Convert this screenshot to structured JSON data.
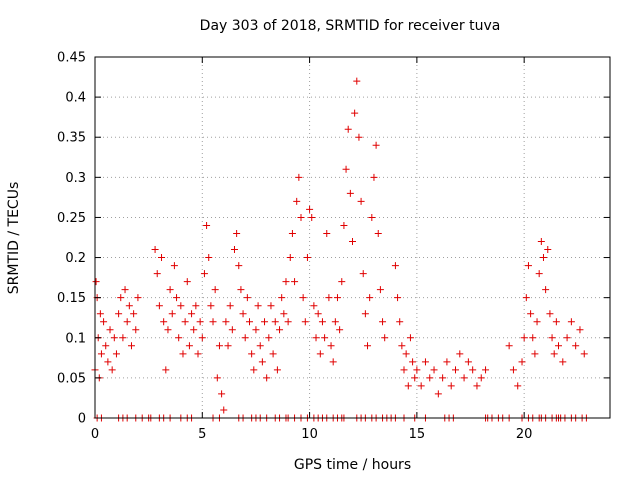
{
  "chart_data": {
    "type": "scatter",
    "title": "Day 303 of 2018, SRMTID for receiver tuva",
    "xlabel": "GPS time / hours",
    "ylabel": "SRMTID / TECUs",
    "xlim": [
      0,
      24
    ],
    "ylim": [
      0,
      0.45
    ],
    "xticks": [
      0,
      5,
      10,
      15,
      20
    ],
    "yticks": [
      0,
      0.05,
      0.1,
      0.15,
      0.2,
      0.25,
      0.3,
      0.35,
      0.4,
      0.45
    ],
    "ytick_labels": [
      "0",
      "0.05",
      "0.1",
      "0.15",
      "0.2",
      "0.25",
      "0.3",
      "0.35",
      "0.4",
      "0.45"
    ],
    "grid": true,
    "marker": "+",
    "series": [
      {
        "name": "SRMTID",
        "color": "#e00000",
        "points": [
          [
            0.0,
            0.06
          ],
          [
            0.05,
            0.17
          ],
          [
            0.1,
            0.15
          ],
          [
            0.15,
            0.1
          ],
          [
            0.2,
            0.05
          ],
          [
            0.25,
            0.13
          ],
          [
            0.3,
            0.08
          ],
          [
            0.4,
            0.12
          ],
          [
            0.5,
            0.09
          ],
          [
            0.6,
            0.07
          ],
          [
            0.7,
            0.11
          ],
          [
            0.8,
            0.06
          ],
          [
            0.9,
            0.1
          ],
          [
            1.0,
            0.08
          ],
          [
            1.1,
            0.13
          ],
          [
            1.2,
            0.15
          ],
          [
            1.3,
            0.1
          ],
          [
            1.4,
            0.16
          ],
          [
            1.5,
            0.12
          ],
          [
            1.6,
            0.14
          ],
          [
            1.7,
            0.09
          ],
          [
            1.8,
            0.13
          ],
          [
            1.9,
            0.11
          ],
          [
            2.0,
            0.15
          ],
          [
            2.8,
            0.21
          ],
          [
            2.9,
            0.18
          ],
          [
            3.0,
            0.14
          ],
          [
            3.1,
            0.2
          ],
          [
            3.2,
            0.12
          ],
          [
            3.3,
            0.06
          ],
          [
            3.4,
            0.11
          ],
          [
            3.5,
            0.16
          ],
          [
            3.6,
            0.13
          ],
          [
            3.7,
            0.19
          ],
          [
            3.8,
            0.15
          ],
          [
            3.9,
            0.1
          ],
          [
            4.0,
            0.14
          ],
          [
            4.1,
            0.08
          ],
          [
            4.2,
            0.12
          ],
          [
            4.3,
            0.17
          ],
          [
            4.4,
            0.09
          ],
          [
            4.5,
            0.13
          ],
          [
            4.6,
            0.11
          ],
          [
            4.7,
            0.14
          ],
          [
            4.8,
            0.08
          ],
          [
            4.9,
            0.12
          ],
          [
            5.0,
            0.1
          ],
          [
            5.1,
            0.18
          ],
          [
            5.2,
            0.24
          ],
          [
            5.3,
            0.2
          ],
          [
            5.4,
            0.14
          ],
          [
            5.5,
            0.12
          ],
          [
            5.6,
            0.16
          ],
          [
            5.7,
            0.05
          ],
          [
            5.8,
            0.09
          ],
          [
            5.9,
            0.03
          ],
          [
            6.0,
            0.01
          ],
          [
            6.1,
            0.12
          ],
          [
            6.2,
            0.09
          ],
          [
            6.3,
            0.14
          ],
          [
            6.4,
            0.11
          ],
          [
            6.5,
            0.21
          ],
          [
            6.6,
            0.23
          ],
          [
            6.7,
            0.19
          ],
          [
            6.8,
            0.16
          ],
          [
            6.9,
            0.13
          ],
          [
            7.0,
            0.1
          ],
          [
            7.1,
            0.15
          ],
          [
            7.2,
            0.12
          ],
          [
            7.3,
            0.08
          ],
          [
            7.4,
            0.06
          ],
          [
            7.5,
            0.11
          ],
          [
            7.6,
            0.14
          ],
          [
            7.7,
            0.09
          ],
          [
            7.8,
            0.07
          ],
          [
            7.9,
            0.12
          ],
          [
            8.0,
            0.05
          ],
          [
            8.1,
            0.1
          ],
          [
            8.2,
            0.14
          ],
          [
            8.3,
            0.08
          ],
          [
            8.4,
            0.12
          ],
          [
            8.5,
            0.06
          ],
          [
            8.6,
            0.11
          ],
          [
            8.7,
            0.15
          ],
          [
            8.8,
            0.13
          ],
          [
            8.9,
            0.17
          ],
          [
            9.0,
            0.12
          ],
          [
            9.1,
            0.2
          ],
          [
            9.2,
            0.23
          ],
          [
            9.3,
            0.17
          ],
          [
            9.4,
            0.27
          ],
          [
            9.5,
            0.3
          ],
          [
            9.6,
            0.25
          ],
          [
            9.7,
            0.15
          ],
          [
            9.8,
            0.12
          ],
          [
            9.9,
            0.2
          ],
          [
            10.0,
            0.26
          ],
          [
            10.1,
            0.25
          ],
          [
            10.2,
            0.14
          ],
          [
            10.3,
            0.1
          ],
          [
            10.4,
            0.13
          ],
          [
            10.5,
            0.08
          ],
          [
            10.6,
            0.12
          ],
          [
            10.7,
            0.1
          ],
          [
            10.8,
            0.23
          ],
          [
            10.9,
            0.15
          ],
          [
            11.0,
            0.09
          ],
          [
            11.1,
            0.07
          ],
          [
            11.2,
            0.12
          ],
          [
            11.3,
            0.15
          ],
          [
            11.4,
            0.11
          ],
          [
            11.5,
            0.17
          ],
          [
            11.6,
            0.24
          ],
          [
            11.7,
            0.31
          ],
          [
            11.8,
            0.36
          ],
          [
            11.9,
            0.28
          ],
          [
            12.0,
            0.22
          ],
          [
            12.1,
            0.38
          ],
          [
            12.2,
            0.42
          ],
          [
            12.3,
            0.35
          ],
          [
            12.4,
            0.27
          ],
          [
            12.5,
            0.18
          ],
          [
            12.6,
            0.13
          ],
          [
            12.7,
            0.09
          ],
          [
            12.8,
            0.15
          ],
          [
            12.9,
            0.25
          ],
          [
            13.0,
            0.3
          ],
          [
            13.1,
            0.34
          ],
          [
            13.2,
            0.23
          ],
          [
            13.3,
            0.16
          ],
          [
            13.4,
            0.12
          ],
          [
            13.5,
            0.1
          ],
          [
            14.0,
            0.19
          ],
          [
            14.1,
            0.15
          ],
          [
            14.2,
            0.12
          ],
          [
            14.3,
            0.09
          ],
          [
            14.4,
            0.06
          ],
          [
            14.5,
            0.08
          ],
          [
            14.6,
            0.04
          ],
          [
            14.7,
            0.1
          ],
          [
            14.8,
            0.07
          ],
          [
            14.9,
            0.05
          ],
          [
            15.0,
            0.06
          ],
          [
            15.2,
            0.04
          ],
          [
            15.4,
            0.07
          ],
          [
            15.6,
            0.05
          ],
          [
            15.8,
            0.06
          ],
          [
            16.0,
            0.03
          ],
          [
            16.2,
            0.05
          ],
          [
            16.4,
            0.07
          ],
          [
            16.6,
            0.04
          ],
          [
            16.8,
            0.06
          ],
          [
            17.0,
            0.08
          ],
          [
            17.2,
            0.05
          ],
          [
            17.4,
            0.07
          ],
          [
            17.6,
            0.06
          ],
          [
            17.8,
            0.04
          ],
          [
            18.0,
            0.05
          ],
          [
            18.2,
            0.06
          ],
          [
            19.3,
            0.09
          ],
          [
            19.5,
            0.06
          ],
          [
            19.7,
            0.04
          ],
          [
            19.9,
            0.07
          ],
          [
            20.0,
            0.1
          ],
          [
            20.1,
            0.15
          ],
          [
            20.2,
            0.19
          ],
          [
            20.3,
            0.13
          ],
          [
            20.4,
            0.1
          ],
          [
            20.5,
            0.08
          ],
          [
            20.6,
            0.12
          ],
          [
            20.7,
            0.18
          ],
          [
            20.8,
            0.22
          ],
          [
            20.9,
            0.2
          ],
          [
            21.0,
            0.16
          ],
          [
            21.1,
            0.21
          ],
          [
            21.2,
            0.13
          ],
          [
            21.3,
            0.1
          ],
          [
            21.4,
            0.08
          ],
          [
            21.5,
            0.12
          ],
          [
            21.6,
            0.09
          ],
          [
            21.8,
            0.07
          ],
          [
            22.0,
            0.1
          ],
          [
            22.2,
            0.12
          ],
          [
            22.4,
            0.09
          ],
          [
            22.6,
            0.11
          ],
          [
            22.8,
            0.08
          ]
        ],
        "zero_hours": [
          0.1,
          0.3,
          1.1,
          1.3,
          1.5,
          1.9,
          2.2,
          2.5,
          2.6,
          3.0,
          3.2,
          3.5,
          4.0,
          4.3,
          4.5,
          5.5,
          5.8,
          6.7,
          6.9,
          7.3,
          7.5,
          7.7,
          8.0,
          8.4,
          8.6,
          8.9,
          9.0,
          9.3,
          9.6,
          9.9,
          10.2,
          10.4,
          10.6,
          10.8,
          11.1,
          11.3,
          11.5,
          11.6,
          12.2,
          12.4,
          12.6,
          12.9,
          13.1,
          13.4,
          13.6,
          13.8,
          14.0,
          14.4,
          14.9,
          15.4,
          16.3,
          16.5,
          16.7,
          18.2,
          18.3,
          18.5,
          18.8,
          19.0,
          19.3,
          19.9,
          20.2,
          20.4,
          20.7,
          20.8,
          21.0,
          21.3,
          21.5,
          21.6,
          21.7,
          21.9,
          22.2,
          22.4,
          22.7,
          22.9
        ]
      }
    ]
  }
}
